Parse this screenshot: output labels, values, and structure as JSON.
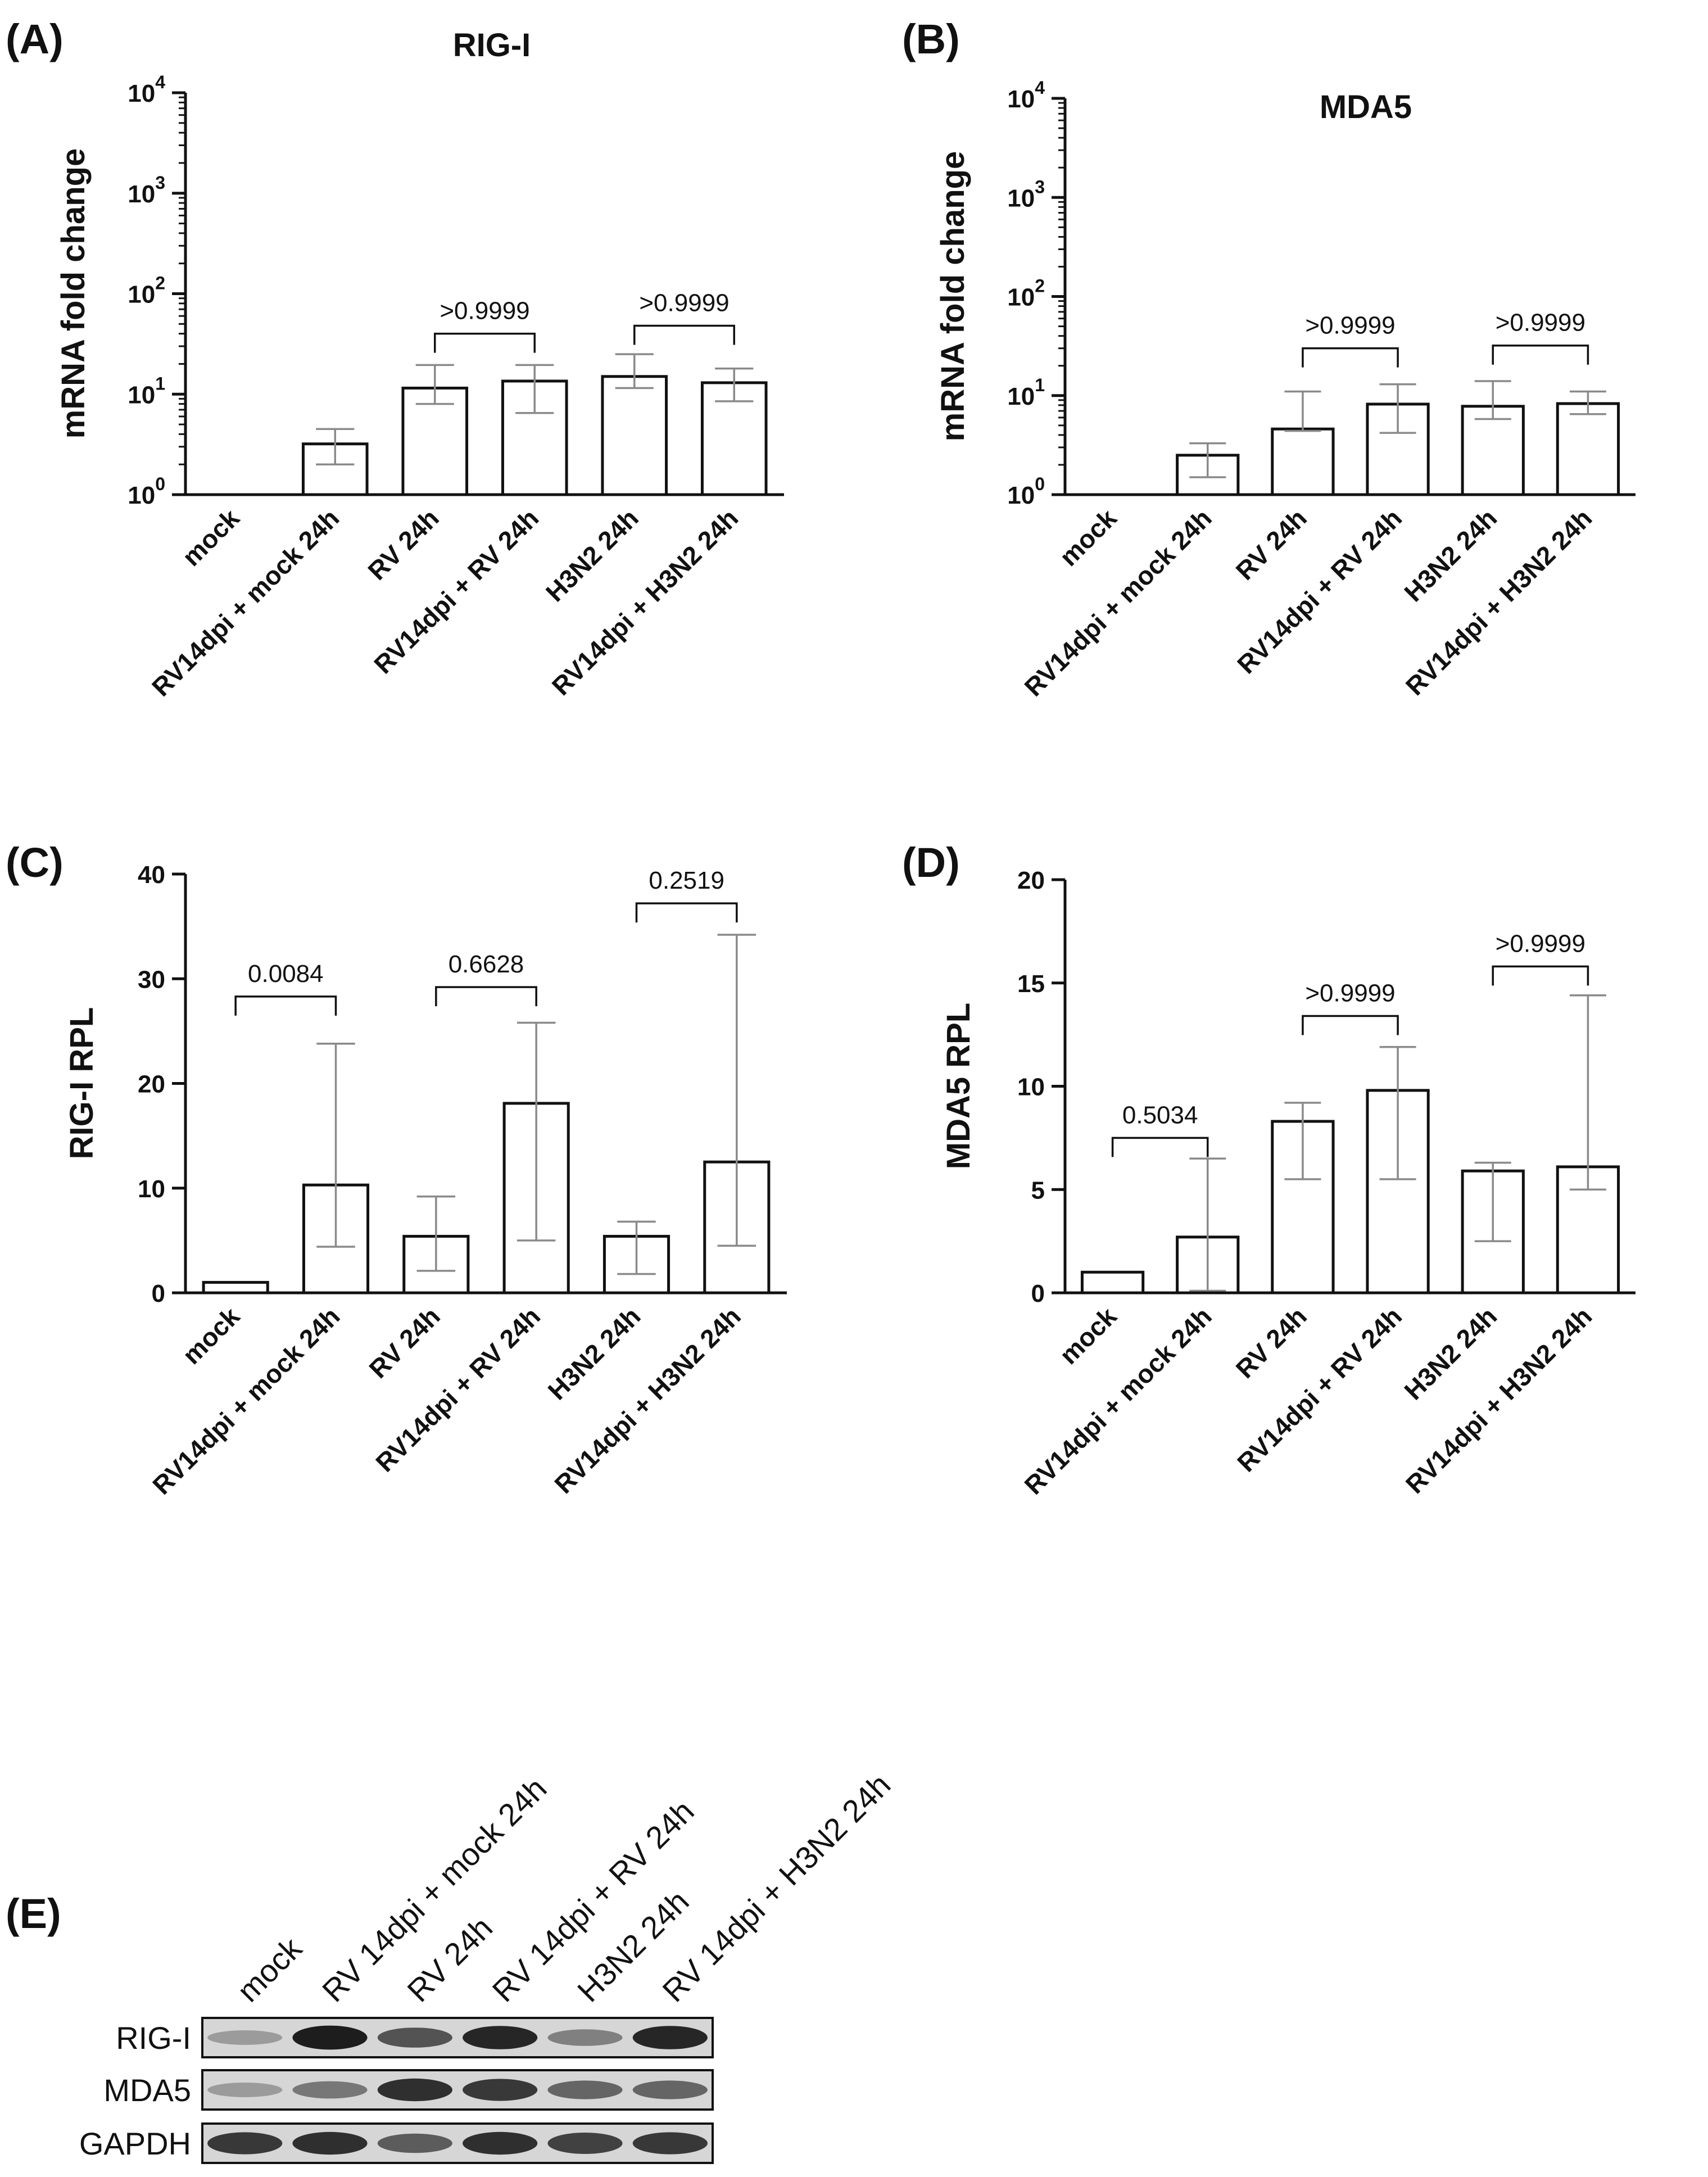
{
  "chart_data": [
    {
      "panel": "(A)",
      "type": "bar",
      "title": "RIG-I",
      "xlabel": "",
      "ylabel": "mRNA fold change",
      "yscale": "log",
      "ylim": [
        1,
        10000
      ],
      "yticks": [
        1,
        10,
        100,
        1000,
        10000
      ],
      "ytick_labels": [
        {
          "base": "10",
          "exp": "0"
        },
        {
          "base": "10",
          "exp": "1"
        },
        {
          "base": "10",
          "exp": "2"
        },
        {
          "base": "10",
          "exp": "3"
        },
        {
          "base": "10",
          "exp": "4"
        }
      ],
      "categories": [
        "mock",
        "RV14dpi + mock 24h",
        "RV 24h",
        "RV14dpi + RV 24h",
        "H3N2 24h",
        "RV14dpi + H3N2 24h"
      ],
      "values": [
        1,
        3.2,
        11.5,
        13.5,
        15,
        13
      ],
      "error_low": [
        1,
        2.0,
        8.0,
        6.5,
        11.5,
        8.5
      ],
      "error_high": [
        1,
        4.5,
        19.5,
        19.5,
        25,
        18
      ],
      "comparisons": [
        {
          "from": 2,
          "to": 3,
          "label": ">0.9999",
          "y": 40
        },
        {
          "from": 4,
          "to": 5,
          "label": ">0.9999",
          "y": 48
        }
      ]
    },
    {
      "panel": "(B)",
      "type": "bar",
      "title": "MDA5",
      "xlabel": "",
      "ylabel": "mRNA fold change",
      "yscale": "log",
      "ylim": [
        1,
        10000
      ],
      "yticks": [
        1,
        10,
        100,
        1000,
        10000
      ],
      "ytick_labels": [
        {
          "base": "10",
          "exp": "0"
        },
        {
          "base": "10",
          "exp": "1"
        },
        {
          "base": "10",
          "exp": "2"
        },
        {
          "base": "10",
          "exp": "3"
        },
        {
          "base": "10",
          "exp": "4"
        }
      ],
      "categories": [
        "mock",
        "RV14dpi + mock 24h",
        "RV 24h",
        "RV14dpi + RV 24h",
        "H3N2 24h",
        "RV14dpi + H3N2 24h"
      ],
      "values": [
        1,
        2.5,
        4.6,
        8.2,
        7.8,
        8.3
      ],
      "error_low": [
        1,
        1.5,
        4.4,
        4.2,
        5.8,
        6.5
      ],
      "error_high": [
        1,
        3.3,
        11,
        13,
        14,
        11
      ],
      "comparisons": [
        {
          "from": 2,
          "to": 3,
          "label": ">0.9999",
          "y": 30
        },
        {
          "from": 4,
          "to": 5,
          "label": ">0.9999",
          "y": 32
        }
      ]
    },
    {
      "panel": "(C)",
      "type": "bar",
      "title": "",
      "xlabel": "",
      "ylabel": "RIG-I RPL",
      "yscale": "linear",
      "ylim": [
        0,
        40
      ],
      "yticks": [
        0,
        10,
        20,
        30,
        40
      ],
      "ytick_labels": [
        "0",
        "10",
        "20",
        "30",
        "40"
      ],
      "categories": [
        "mock",
        "RV14dpi + mock 24h",
        "RV 24h",
        "RV14dpi + RV 24h",
        "H3N2 24h",
        "RV14dpi + H3N2 24h"
      ],
      "values": [
        1,
        10.3,
        5.4,
        18.1,
        5.4,
        12.5
      ],
      "error_low": [
        1,
        4.4,
        2.1,
        5.0,
        1.8,
        4.5
      ],
      "error_high": [
        1,
        23.8,
        9.2,
        25.8,
        6.8,
        34.2
      ],
      "comparisons": [
        {
          "from": 0,
          "to": 1,
          "label": "0.0084",
          "y": 28.3
        },
        {
          "from": 2,
          "to": 3,
          "label": "0.6628",
          "y": 29.2
        },
        {
          "from": 4,
          "to": 5,
          "label": "0.2519",
          "y": 37.2
        }
      ]
    },
    {
      "panel": "(D)",
      "type": "bar",
      "title": "",
      "xlabel": "",
      "ylabel": "MDA5 RPL",
      "yscale": "linear",
      "ylim": [
        0,
        20
      ],
      "yticks": [
        0,
        5,
        10,
        15,
        20
      ],
      "ytick_labels": [
        "0",
        "5",
        "10",
        "15",
        "20"
      ],
      "categories": [
        "mock",
        "RV14dpi + mock 24h",
        "RV 24h",
        "RV14dpi + RV 24h",
        "H3N2 24h",
        "RV14dpi + H3N2 24h"
      ],
      "values": [
        1,
        2.7,
        8.3,
        9.8,
        5.9,
        6.1
      ],
      "error_low": [
        1,
        0.1,
        5.5,
        5.5,
        2.5,
        5.0
      ],
      "error_high": [
        1,
        6.5,
        9.2,
        11.9,
        6.3,
        14.4
      ],
      "comparisons": [
        {
          "from": 0,
          "to": 1,
          "label": "0.5034",
          "y": 7.5
        },
        {
          "from": 2,
          "to": 3,
          "label": ">0.9999",
          "y": 13.4
        },
        {
          "from": 4,
          "to": 5,
          "label": ">0.9999",
          "y": 15.8
        }
      ]
    }
  ],
  "western_blot": {
    "panel": "(E)",
    "lanes": [
      "mock",
      "RV 14dpi + mock 24h",
      "RV 24h",
      "RV 14dpi + RV 24h",
      "H3N2 24h",
      "RV 14dpi + H3N2 24h"
    ],
    "rows": [
      {
        "label": "RIG-I",
        "intensity": [
          0.25,
          0.95,
          0.65,
          0.9,
          0.4,
          0.9
        ]
      },
      {
        "label": "MDA5",
        "intensity": [
          0.25,
          0.45,
          0.85,
          0.8,
          0.55,
          0.55
        ]
      },
      {
        "label": "GAPDH",
        "intensity": [
          0.8,
          0.85,
          0.6,
          0.85,
          0.75,
          0.8
        ]
      }
    ]
  },
  "colors": {
    "ink": "#111111",
    "error": "#8a8a8a",
    "bar": "#ffffff"
  }
}
